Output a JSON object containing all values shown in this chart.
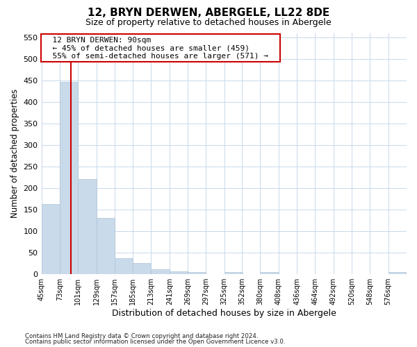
{
  "title": "12, BRYN DERWEN, ABERGELE, LL22 8DE",
  "subtitle": "Size of property relative to detached houses in Abergele",
  "xlabel": "Distribution of detached houses by size in Abergele",
  "ylabel": "Number of detached properties",
  "bar_color": "#c9daea",
  "bar_edge_color": "#afc5d8",
  "vline_color": "#cc0000",
  "vline_x": 90,
  "annotation_title": "12 BRYN DERWEN: 90sqm",
  "annotation_line1": "← 45% of detached houses are smaller (459)",
  "annotation_line2": "55% of semi-detached houses are larger (571) →",
  "bin_edges": [
    45,
    73,
    101,
    129,
    157,
    185,
    213,
    241,
    269,
    297,
    325,
    352,
    380,
    408,
    436,
    464,
    492,
    520,
    548,
    576,
    604
  ],
  "bin_counts": [
    163,
    447,
    220,
    130,
    37,
    25,
    11,
    6,
    5,
    0,
    5,
    0,
    5,
    0,
    0,
    0,
    0,
    0,
    0,
    5
  ],
  "ylim": [
    0,
    560
  ],
  "yticks": [
    0,
    50,
    100,
    150,
    200,
    250,
    300,
    350,
    400,
    450,
    500,
    550
  ],
  "background_color": "#ffffff",
  "grid_color": "#c8d8ea",
  "footnote1": "Contains HM Land Registry data © Crown copyright and database right 2024.",
  "footnote2": "Contains public sector information licensed under the Open Government Licence v3.0."
}
